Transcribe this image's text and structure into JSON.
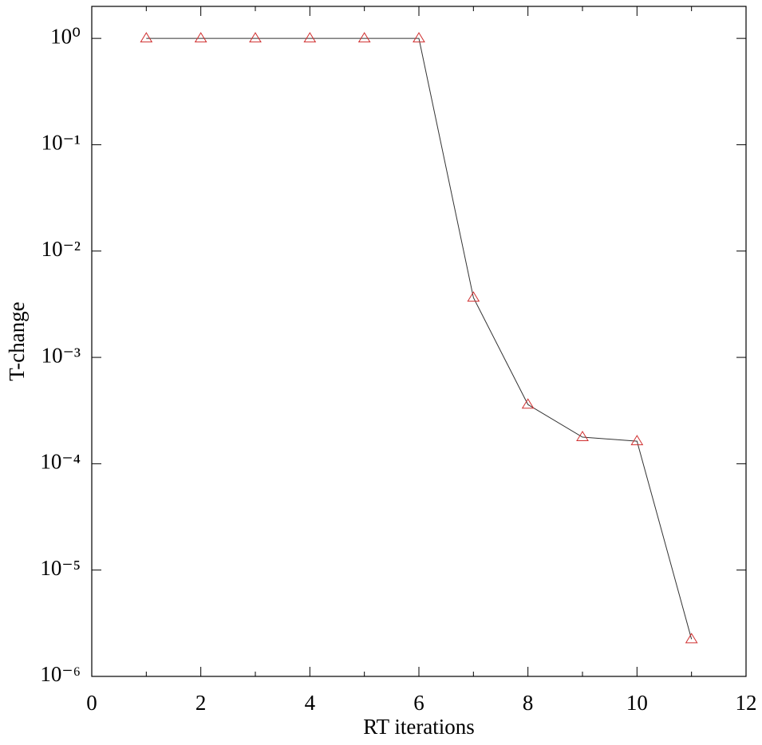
{
  "chart_data": {
    "type": "line",
    "xlabel": "RT iterations",
    "ylabel": "T-change",
    "x": [
      1,
      2,
      3,
      4,
      5,
      6,
      7,
      8,
      9,
      10,
      11
    ],
    "series": [
      {
        "color": "#d03030",
        "line_color": "#333333",
        "marker": "triangle-open",
        "values": [
          1,
          1,
          1,
          1,
          1,
          1,
          0.00365,
          0.00036,
          0.000178,
          0.000163,
          2.24e-06
        ]
      }
    ],
    "xlim": [
      0,
      12
    ],
    "xticks": [
      0,
      2,
      4,
      6,
      8,
      10,
      12
    ],
    "xminorticks": [
      1,
      3,
      5,
      7,
      9,
      11
    ],
    "ylim": [
      1e-06,
      2
    ],
    "yscale": "log",
    "yticks": [
      {
        "value": 1,
        "label": "10⁰"
      },
      {
        "value": 0.1,
        "label": "10⁻¹"
      },
      {
        "value": 0.01,
        "label": "10⁻²"
      },
      {
        "value": 0.001,
        "label": "10⁻³"
      },
      {
        "value": 0.0001,
        "label": "10⁻⁴"
      },
      {
        "value": 1e-05,
        "label": "10⁻⁵"
      },
      {
        "value": 1e-06,
        "label": "10⁻⁶"
      }
    ],
    "grid": false
  }
}
